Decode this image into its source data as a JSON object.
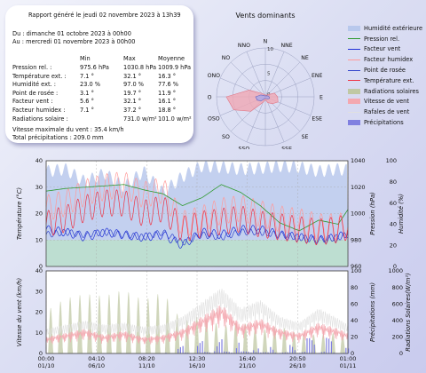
{
  "header": {
    "title": "Rapport généré le jeudi 02 novembre 2023 à 13h39",
    "from": "Du : dimanche 01 octobre 2023 à 00h00",
    "to": "Au : mercredi 01 novembre 2023 à 00h00"
  },
  "stats": {
    "columns": [
      "Min",
      "Max",
      "Moyenne"
    ],
    "rows": [
      {
        "label": "Pression rel. :",
        "min": "975.6 hPa",
        "max": "1030.8 hPa",
        "avg": "1009.9 hPa"
      },
      {
        "label": "Température ext. :",
        "min": "7.1 °",
        "max": "32.1 °",
        "avg": "16.3 °"
      },
      {
        "label": "Humidité ext. :",
        "min": "23.0 %",
        "max": "97.0 %",
        "avg": "77.6 %"
      },
      {
        "label": "Point de rosée :",
        "min": "3.1 °",
        "max": "19.7 °",
        "avg": "11.9 °"
      },
      {
        "label": "Facteur vent :",
        "min": "5.6 °",
        "max": "32.1 °",
        "avg": "16.1 °"
      },
      {
        "label": "Facteur humidex :",
        "min": "7.1 °",
        "max": "37.2 °",
        "avg": "18.8 °"
      },
      {
        "label": "Radiations solaire :",
        "min": "",
        "max": "731.0 w/m²",
        "avg": "101.0 w/m²"
      }
    ],
    "wind_max": "Vitesse maximale du vent : 35.4 km/h",
    "rain_total": "Total précipitations : 209.0 mm"
  },
  "chart_data": [
    {
      "type": "radar",
      "title": "Vents dominants",
      "directions": [
        "N",
        "NNE",
        "NE",
        "ENE",
        "E",
        "ESE",
        "SE",
        "SSE",
        "S",
        "SSO",
        "SO",
        "OSO",
        "O",
        "ONO",
        "NO",
        "NNO"
      ],
      "ring_labels": [
        "0",
        "5",
        "10"
      ],
      "series": [
        {
          "values": [
            0.4,
            0.3,
            0.6,
            2.0,
            2.5,
            2.8,
            2.0,
            1.3,
            0.6,
            1.2,
            4.2,
            7.0,
            8.0,
            3.6,
            1.0,
            0.5
          ],
          "color": "#f0a8b4"
        },
        {
          "values": [
            0.2,
            0.2,
            0.3,
            0.5,
            0.8,
            0.9,
            0.6,
            0.4,
            0.3,
            0.4,
            1.2,
            1.8,
            2.0,
            1.0,
            0.4,
            0.2
          ],
          "color": "#a9a9e8"
        }
      ]
    },
    {
      "type": "line",
      "x_ticks": [
        "01/10",
        "06/10",
        "11/10",
        "16/10",
        "21/10",
        "26/10",
        "01/11"
      ],
      "time_ticks": [
        "00:00",
        "04:10",
        "08:20",
        "12:30",
        "16:40",
        "20:50",
        "01:00"
      ],
      "panels": [
        {
          "ylabel": "Température (°C)",
          "ylim": [
            0,
            40
          ],
          "yticks": [
            0,
            10,
            20,
            30,
            40
          ],
          "right_ylabel": "Pression (hPa)",
          "right_ylim": [
            960,
            1040
          ],
          "right_ticks": [
            960,
            980,
            1000,
            1020,
            1040
          ],
          "right2_ylabel": "Humidité (%)",
          "right2_ylim": [
            0,
            100
          ],
          "right2_ticks": [
            0,
            20,
            40,
            60,
            80,
            100
          ]
        },
        {
          "ylabel": "Vitesse du vent (km/h)",
          "ylim": [
            0,
            40
          ],
          "yticks": [
            0,
            10,
            20,
            30,
            40
          ],
          "right_ylabel": "Précipitations (mm)",
          "right_ylim": [
            0,
            100
          ],
          "right_ticks": [
            0,
            20,
            40,
            60,
            80,
            100
          ],
          "right2_ylabel": "Radiations Solaires(W/m²)",
          "right2_ylim": [
            0,
            1000
          ],
          "right2_ticks": [
            0,
            200,
            400,
            600,
            800,
            1000
          ]
        }
      ],
      "series": [
        {
          "name": "Humidité extérieure",
          "color": "#b8c8ec",
          "x": [
            0,
            2,
            4,
            6,
            8,
            10,
            12,
            14,
            16,
            18,
            20,
            22,
            24,
            26,
            28,
            30,
            31
          ],
          "values": [
            90,
            92,
            80,
            88,
            75,
            90,
            70,
            85,
            95,
            94,
            92,
            93,
            95,
            94,
            90,
            92,
            91
          ]
        },
        {
          "name": "Pression rel.",
          "color": "#2e9a2e",
          "x": [
            0,
            2,
            4,
            6,
            8,
            10,
            12,
            14,
            16,
            18,
            20,
            22,
            24,
            26,
            28,
            30,
            31
          ],
          "values": [
            1017,
            1019,
            1020,
            1021,
            1022,
            1018,
            1015,
            1006,
            1012,
            1022,
            1016,
            1006,
            993,
            987,
            995,
            992,
            1003
          ]
        },
        {
          "name": "Facteur vent",
          "color": "#2030d8",
          "x": [
            0,
            2,
            4,
            6,
            8,
            10,
            12,
            14,
            16,
            18,
            20,
            22,
            24,
            26,
            28,
            30,
            31
          ],
          "values": [
            14,
            13,
            11,
            13,
            12,
            11,
            12,
            8,
            13,
            12,
            14,
            14,
            12,
            11,
            10,
            11,
            13
          ]
        },
        {
          "name": "Facteur humidex",
          "color": "#ff9a9a",
          "x": [
            0,
            2,
            4,
            6,
            8,
            10,
            12,
            14,
            16,
            18,
            20,
            22,
            24,
            26,
            28,
            30,
            31
          ],
          "values": [
            22,
            24,
            28,
            30,
            31,
            27,
            29,
            16,
            18,
            21,
            22,
            20,
            18,
            17,
            15,
            15,
            16
          ]
        },
        {
          "name": "Point de rosée",
          "color": "#3344cc",
          "x": [
            0,
            2,
            4,
            6,
            8,
            10,
            12,
            14,
            16,
            18,
            20,
            22,
            24,
            26,
            28,
            30,
            31
          ],
          "values": [
            12,
            13,
            12,
            13,
            12,
            11,
            13,
            9,
            12,
            11,
            13,
            13,
            12,
            11,
            10,
            11,
            12
          ]
        },
        {
          "name": "Température ext.",
          "color": "#ee3344",
          "x": [
            0,
            2,
            4,
            6,
            8,
            10,
            12,
            14,
            16,
            18,
            20,
            22,
            24,
            26,
            28,
            30,
            31
          ],
          "values": [
            16,
            18,
            22,
            24,
            24,
            20,
            22,
            14,
            16,
            17,
            18,
            16,
            15,
            14,
            13,
            14,
            15
          ]
        },
        {
          "name": "Radiations solaires",
          "color": "#c0c8a4",
          "x": [
            0,
            2,
            4,
            6,
            8,
            10,
            12,
            14,
            16,
            18,
            20,
            22,
            24,
            26,
            28,
            30,
            31
          ],
          "values": [
            400,
            520,
            560,
            540,
            600,
            500,
            580,
            300,
            360,
            260,
            300,
            220,
            260,
            180,
            180,
            200,
            150
          ]
        },
        {
          "name": "Vitesse de vent",
          "color": "#f4a8b0",
          "x": [
            0,
            2,
            4,
            6,
            8,
            10,
            12,
            14,
            16,
            18,
            20,
            22,
            24,
            26,
            28,
            30,
            31
          ],
          "values": [
            8,
            10,
            12,
            9,
            11,
            8,
            9,
            12,
            18,
            24,
            14,
            17,
            12,
            10,
            15,
            12,
            10
          ]
        },
        {
          "name": "Rafales de vent",
          "color": "#e0e0e0",
          "x": [
            0,
            2,
            4,
            6,
            8,
            10,
            12,
            14,
            16,
            18,
            20,
            22,
            24,
            26,
            28,
            30,
            31
          ],
          "values": [
            12,
            14,
            16,
            14,
            15,
            13,
            14,
            18,
            25,
            32,
            22,
            26,
            18,
            15,
            22,
            17,
            14
          ]
        },
        {
          "name": "Précipitations",
          "color": "#8080e0",
          "x": [
            0,
            2,
            4,
            6,
            8,
            10,
            12,
            14,
            16,
            18,
            20,
            22,
            24,
            26,
            28,
            30,
            31
          ],
          "values": [
            0,
            0,
            0,
            0,
            0,
            0,
            0,
            3,
            5,
            6,
            7,
            4,
            3,
            5,
            8,
            4,
            2
          ]
        }
      ]
    }
  ]
}
